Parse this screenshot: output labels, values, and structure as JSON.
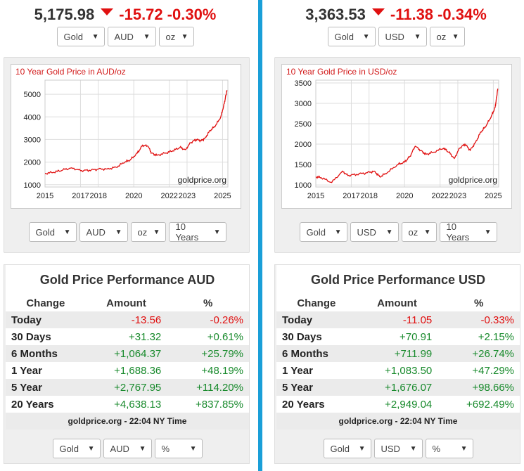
{
  "left": {
    "ticker": {
      "price": "5,175.98",
      "change": "-15.72",
      "percent": "-0.30%"
    },
    "top_selects": {
      "metal": "Gold",
      "currency": "AUD",
      "unit": "oz"
    },
    "chart_selects": {
      "metal": "Gold",
      "currency": "AUD",
      "unit": "oz",
      "range": "10 Years"
    },
    "bottom_selects": {
      "metal": "Gold",
      "currency": "AUD",
      "mode": "%"
    },
    "perf": {
      "title": "Gold Price Performance AUD",
      "headers": [
        "Change",
        "Amount",
        "%"
      ],
      "rows": [
        {
          "label": "Today",
          "amount": "-13.56",
          "pct": "-0.26%"
        },
        {
          "label": "30 Days",
          "amount": "+31.32",
          "pct": "+0.61%"
        },
        {
          "label": "6 Months",
          "amount": "+1,064.37",
          "pct": "+25.79%"
        },
        {
          "label": "1 Year",
          "amount": "+1,688.36",
          "pct": "+48.19%"
        },
        {
          "label": "5 Year",
          "amount": "+2,767.95",
          "pct": "+114.20%"
        },
        {
          "label": "20 Years",
          "amount": "+4,638.13",
          "pct": "+837.85%"
        }
      ],
      "footer": "goldprice.org - 22:04 NY Time"
    }
  },
  "right": {
    "ticker": {
      "price": "3,363.53",
      "change": "-11.38",
      "percent": "-0.34%"
    },
    "top_selects": {
      "metal": "Gold",
      "currency": "USD",
      "unit": "oz"
    },
    "chart_selects": {
      "metal": "Gold",
      "currency": "USD",
      "unit": "oz",
      "range": "10 Years"
    },
    "bottom_selects": {
      "metal": "Gold",
      "currency": "USD",
      "mode": "%"
    },
    "perf": {
      "title": "Gold Price Performance USD",
      "headers": [
        "Change",
        "Amount",
        "%"
      ],
      "rows": [
        {
          "label": "Today",
          "amount": "-11.05",
          "pct": "-0.33%"
        },
        {
          "label": "30 Days",
          "amount": "+70.91",
          "pct": "+2.15%"
        },
        {
          "label": "6 Months",
          "amount": "+711.99",
          "pct": "+26.74%"
        },
        {
          "label": "1 Year",
          "amount": "+1,083.50",
          "pct": "+47.29%"
        },
        {
          "label": "5 Year",
          "amount": "+1,676.07",
          "pct": "+98.66%"
        },
        {
          "label": "20 Years",
          "amount": "+2,949.04",
          "pct": "+692.49%"
        }
      ],
      "footer": "goldprice.org - 22:04 NY Time"
    }
  },
  "colors": {
    "negative": "#e01010",
    "positive": "#188a2c",
    "divider": "#1a9fd8",
    "line": "#e01010"
  },
  "chart_data": [
    {
      "type": "line",
      "title": "10 Year Gold Price in AUD/oz",
      "watermark": "goldprice.org",
      "xlabel": "",
      "ylabel": "",
      "xlim": [
        2015,
        2025.3
      ],
      "ylim": [
        900,
        5500
      ],
      "xticks": [
        2015,
        2017,
        2018,
        2020,
        2022,
        2023,
        2025
      ],
      "yticks": [
        1000,
        2000,
        3000,
        4000,
        5000
      ],
      "x": [
        2015.0,
        2015.5,
        2016.0,
        2016.5,
        2017.0,
        2017.5,
        2018.0,
        2018.5,
        2019.0,
        2019.5,
        2019.8,
        2020.2,
        2020.5,
        2020.8,
        2021.0,
        2021.3,
        2021.8,
        2022.2,
        2022.6,
        2022.9,
        2023.2,
        2023.5,
        2023.8,
        2024.0,
        2024.3,
        2024.6,
        2024.9,
        2025.1,
        2025.2,
        2025.25
      ],
      "values": [
        1500,
        1550,
        1650,
        1750,
        1620,
        1640,
        1690,
        1700,
        1770,
        2000,
        2100,
        2400,
        2750,
        2700,
        2400,
        2300,
        2400,
        2500,
        2650,
        2550,
        2850,
        3000,
        2950,
        3050,
        3400,
        3600,
        4000,
        4600,
        5000,
        5180
      ]
    },
    {
      "type": "line",
      "title": "10 Year Gold Price in USD/oz",
      "watermark": "goldprice.org",
      "xlabel": "",
      "ylabel": "",
      "xlim": [
        2015,
        2025.3
      ],
      "ylim": [
        950,
        3500
      ],
      "xticks": [
        2015,
        2017,
        2018,
        2020,
        2022,
        2023,
        2025
      ],
      "yticks": [
        1000,
        1500,
        2000,
        2500,
        3000,
        3500
      ],
      "x": [
        2015.0,
        2015.3,
        2015.9,
        2016.5,
        2016.8,
        2017.3,
        2017.9,
        2018.3,
        2018.6,
        2019.0,
        2019.6,
        2020.0,
        2020.3,
        2020.6,
        2020.9,
        2021.2,
        2021.6,
        2022.2,
        2022.5,
        2022.8,
        2023.1,
        2023.4,
        2023.7,
        2024.0,
        2024.3,
        2024.6,
        2024.9,
        2025.1,
        2025.2,
        2025.25
      ],
      "values": [
        1200,
        1180,
        1060,
        1340,
        1230,
        1260,
        1300,
        1340,
        1200,
        1290,
        1500,
        1560,
        1700,
        1950,
        1850,
        1750,
        1800,
        1900,
        1800,
        1650,
        1900,
        2000,
        1850,
        2050,
        2300,
        2450,
        2700,
        2900,
        3200,
        3360
      ]
    }
  ]
}
